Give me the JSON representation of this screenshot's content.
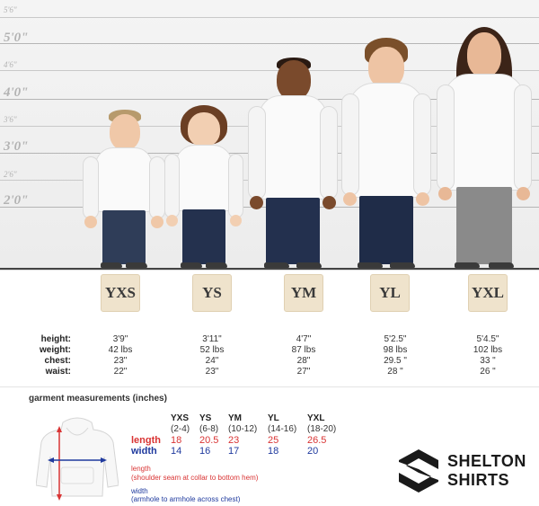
{
  "height_scale": {
    "labels": [
      "5'6\"",
      "5'0\"",
      "4'6\"",
      "4'0\"",
      "3'6\"",
      "3'0\"",
      "2'6\"",
      "2'0\""
    ]
  },
  "sizes": [
    {
      "code": "YXS",
      "height": "3'9\"",
      "weight": "42 lbs",
      "chest": "23\"",
      "waist": "22\""
    },
    {
      "code": "YS",
      "height": "3'11\"",
      "weight": "52 lbs",
      "chest": "24\"",
      "waist": "23\""
    },
    {
      "code": "YM",
      "height": "4'7\"",
      "weight": "87 lbs",
      "chest": "28\"",
      "waist": "27\""
    },
    {
      "code": "YL",
      "height": "5'2.5\"",
      "weight": "98 lbs",
      "chest": "29.5 \"",
      "waist": "28 \""
    },
    {
      "code": "YXL",
      "height": "5'4.5\"",
      "weight": "102 lbs",
      "chest": "33 \"",
      "waist": "26 \""
    }
  ],
  "stat_labels": {
    "height": "height:",
    "weight": "weight:",
    "chest": "chest:",
    "waist": "waist:"
  },
  "garment": {
    "title": "garment measurements (inches)",
    "columns": [
      {
        "size": "YXS",
        "range": "(2-4)",
        "length": "18",
        "width": "14"
      },
      {
        "size": "YS",
        "range": "(6-8)",
        "length": "20.5",
        "width": "16"
      },
      {
        "size": "YM",
        "range": "(10-12)",
        "length": "23",
        "width": "17"
      },
      {
        "size": "YL",
        "range": "(14-16)",
        "length": "25",
        "width": "18"
      },
      {
        "size": "YXL",
        "range": "(18-20)",
        "length": "26.5",
        "width": "20"
      }
    ],
    "length_label": "length",
    "width_label": "width",
    "length_note_title": "length",
    "length_note": "(shoulder seam at collar to bottom hem)",
    "width_note_title": "width",
    "width_note": "(armhole to armhole across chest)"
  },
  "logo": {
    "line1": "SHELTON",
    "line2": "SHIRTS"
  },
  "colors": {
    "length": "#d93434",
    "width": "#1f3a9e",
    "badge": "#efe3cc"
  }
}
